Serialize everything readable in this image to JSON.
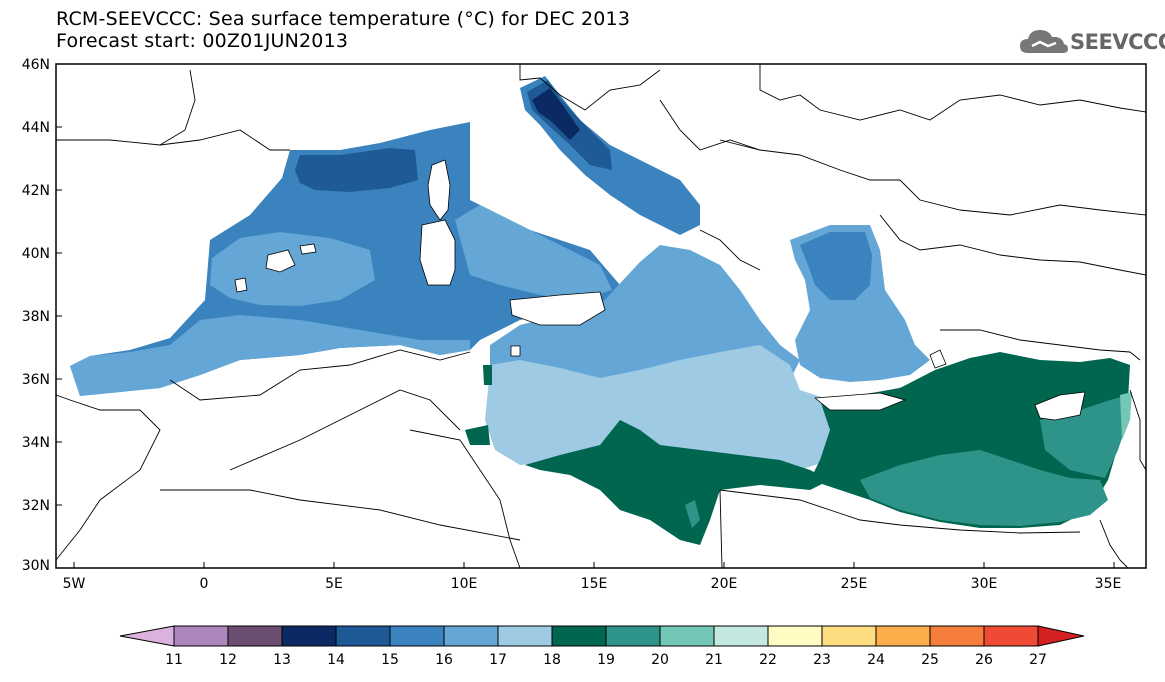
{
  "title_line1": "RCM-SEEVCCC: Sea surface temperature (°C) for DEC 2013",
  "title_line2": "Forecast start: 00Z01JUN2013",
  "logo_text": "SEEVCCC",
  "y_axis_labels": [
    "46N",
    "44N",
    "42N",
    "40N",
    "38N",
    "36N",
    "34N",
    "32N",
    "30N"
  ],
  "x_axis_labels": [
    "5W",
    "0",
    "5E",
    "10E",
    "15E",
    "20E",
    "25E",
    "30E",
    "35E"
  ],
  "colorbar": {
    "labels": [
      "11",
      "12",
      "13",
      "14",
      "15",
      "16",
      "17",
      "18",
      "19",
      "20",
      "21",
      "22",
      "23",
      "24",
      "25",
      "26",
      "27"
    ],
    "colors": [
      "#d9b2dd",
      "#ac87bd",
      "#6b4f72",
      "#0b2a63",
      "#1e5b96",
      "#3a83bf",
      "#64a6d5",
      "#9ecbe3",
      "#006650",
      "#2e948a",
      "#74c6b7",
      "#c4e8e0",
      "#fffbc3",
      "#fedd80",
      "#fbae4a",
      "#f67d3a",
      "#ee4a34",
      "#d42020"
    ]
  },
  "map_colors": {
    "cold_14": "#1e5b96",
    "cool_15": "#3a83bf",
    "mild_16": "#64a6d5",
    "mild_17": "#9ecbe3",
    "warm_18": "#006650",
    "warm_19": "#2e948a",
    "warm_20": "#74c6b7"
  }
}
